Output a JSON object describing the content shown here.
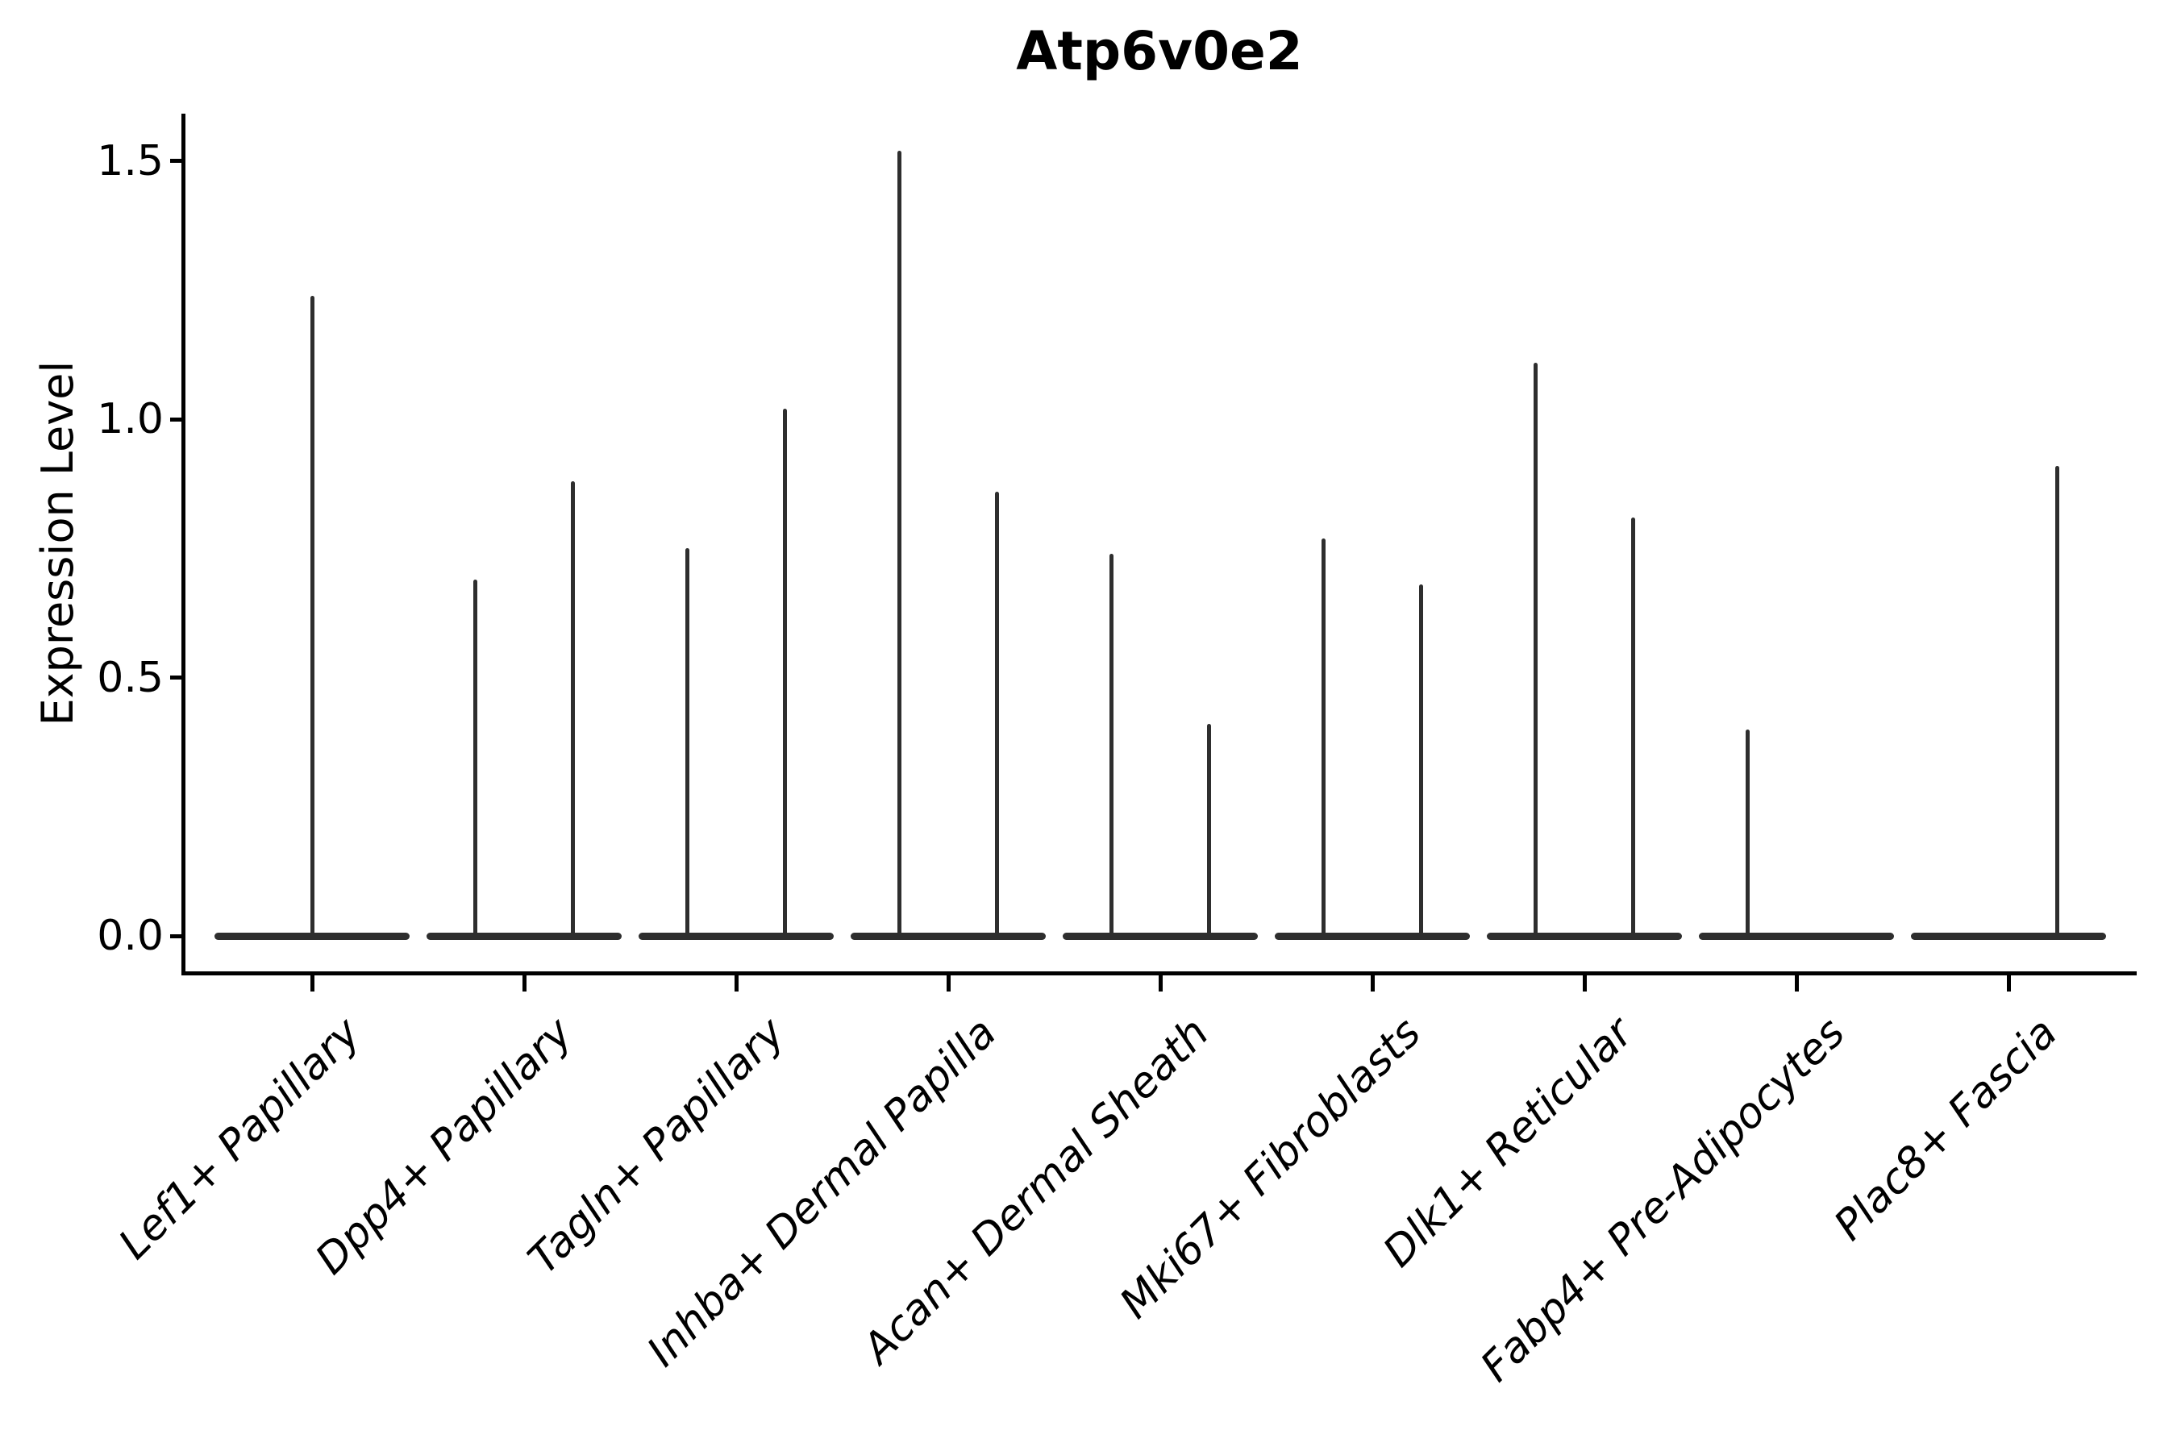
{
  "chart": {
    "title": "Atp6v0e2",
    "ylabel": "Expression Level"
  },
  "colors": {
    "background": "#ffffff",
    "axis": "#000000",
    "text": "#000000",
    "violin_stroke": "#2e2e2e"
  },
  "chart_data": {
    "type": "violin",
    "title": "Atp6v0e2",
    "xlabel": "",
    "ylabel": "Expression Level",
    "ylim": [
      0,
      1.55
    ],
    "grid": false,
    "legend_position": "none",
    "y_ticks": [
      {
        "value": 0.0,
        "label": "0.0"
      },
      {
        "value": 0.5,
        "label": "0.5"
      },
      {
        "value": 1.0,
        "label": "1.0"
      },
      {
        "value": 1.5,
        "label": "1.5"
      }
    ],
    "categories": [
      "Lef1+ Papillary",
      "Dpp4+ Papillary",
      "Tagln+ Papillary",
      "Inhba+ Dermal Papilla",
      "Acan+ Dermal Sheath",
      "Mki67+ Fibroblasts",
      "Dlk1+ Reticular",
      "Fabp4+ Pre-Adipocytes",
      "Plac8+ Fascia"
    ],
    "note": "Needle-thin violins: dense mass at expression 0 forms a flat base across each category; thin spikes rise to the maximum expressing cells. Most categories show two dodged spikes at quarter offsets; Lef1+ Papillary has a single centered spike; Fabp4+ Pre-Adipocytes only a left spike; Plac8+ Fascia only a right spike.",
    "violins": [
      {
        "category": "Lef1+ Papillary",
        "base_value": 0,
        "spikes": [
          {
            "position": "center",
            "max": 1.24
          }
        ]
      },
      {
        "category": "Dpp4+ Papillary",
        "base_value": 0,
        "spikes": [
          {
            "position": "left",
            "max": 0.69
          },
          {
            "position": "right",
            "max": 0.88
          }
        ]
      },
      {
        "category": "Tagln+ Papillary",
        "base_value": 0,
        "spikes": [
          {
            "position": "left",
            "max": 0.75
          },
          {
            "position": "right",
            "max": 1.02
          }
        ]
      },
      {
        "category": "Inhba+ Dermal Papilla",
        "base_value": 0,
        "spikes": [
          {
            "position": "left",
            "max": 1.52
          },
          {
            "position": "right",
            "max": 0.86
          }
        ]
      },
      {
        "category": "Acan+ Dermal Sheath",
        "base_value": 0,
        "spikes": [
          {
            "position": "left",
            "max": 0.74
          },
          {
            "position": "right",
            "max": 0.41
          }
        ]
      },
      {
        "category": "Mki67+ Fibroblasts",
        "base_value": 0,
        "spikes": [
          {
            "position": "left",
            "max": 0.77
          },
          {
            "position": "right",
            "max": 0.68
          }
        ]
      },
      {
        "category": "Dlk1+ Reticular",
        "base_value": 0,
        "spikes": [
          {
            "position": "left",
            "max": 1.11
          },
          {
            "position": "right",
            "max": 0.81
          }
        ]
      },
      {
        "category": "Fabp4+ Pre-Adipocytes",
        "base_value": 0,
        "spikes": [
          {
            "position": "left",
            "max": 0.4
          }
        ]
      },
      {
        "category": "Plac8+ Fascia",
        "base_value": 0,
        "spikes": [
          {
            "position": "right",
            "max": 0.91
          }
        ]
      }
    ]
  }
}
